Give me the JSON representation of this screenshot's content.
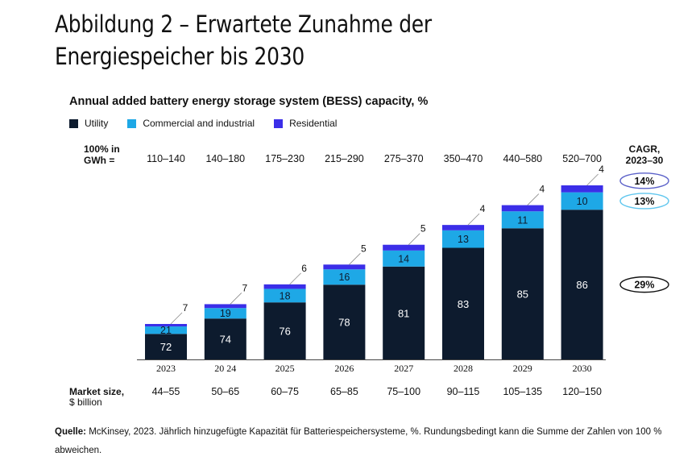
{
  "page": {
    "title": "Abbildung 2 – Erwartete Zunahme der Energiespeicher bis 2030",
    "source_label": "Quelle:",
    "source_text": "McKinsey, 2023. Jährlich hinzugefügte Kapazität für Batteriespeichersysteme, %. Rundungsbedingt kann die Summe der Zahlen von 100 % abweichen."
  },
  "colors": {
    "utility": "#0d1b2e",
    "commercial": "#1ea8e6",
    "residential": "#3b2ee8"
  },
  "chart_data": {
    "type": "bar",
    "stacked": true,
    "title": "Annual added battery energy storage system (BESS) capacity, %",
    "categories": [
      "2023",
      "20 24",
      "2025",
      "2026",
      "2027",
      "2028",
      "2029",
      "2030"
    ],
    "series": [
      {
        "name": "Utility",
        "values": [
          72,
          74,
          76,
          78,
          81,
          83,
          85,
          86
        ]
      },
      {
        "name": "Commercial and industrial",
        "values": [
          21,
          19,
          18,
          16,
          14,
          13,
          11,
          10
        ]
      },
      {
        "name": "Residential",
        "values": [
          7,
          7,
          6,
          5,
          5,
          4,
          4,
          4
        ]
      }
    ],
    "gwh_label_line1": "100% in",
    "gwh_label_line2": "GWh =",
    "gwh_totals": [
      "110–140",
      "140–180",
      "175–230",
      "215–290",
      "275–370",
      "350–470",
      "440–580",
      "520–700"
    ],
    "market_label_line1": "Market size,",
    "market_label_line2": "$ billion",
    "market_size": [
      "44–55",
      "50–65",
      "60–75",
      "65–85",
      "75–100",
      "90–115",
      "105–135",
      "120–150"
    ],
    "cagr_label_line1": "CAGR,",
    "cagr_label_line2": "2023–30",
    "cagr": [
      {
        "series": "Residential",
        "value": "14%"
      },
      {
        "series": "Commercial and industrial",
        "value": "13%"
      },
      {
        "series": "Utility",
        "value": "29%"
      }
    ],
    "legend_position": "top-left"
  }
}
